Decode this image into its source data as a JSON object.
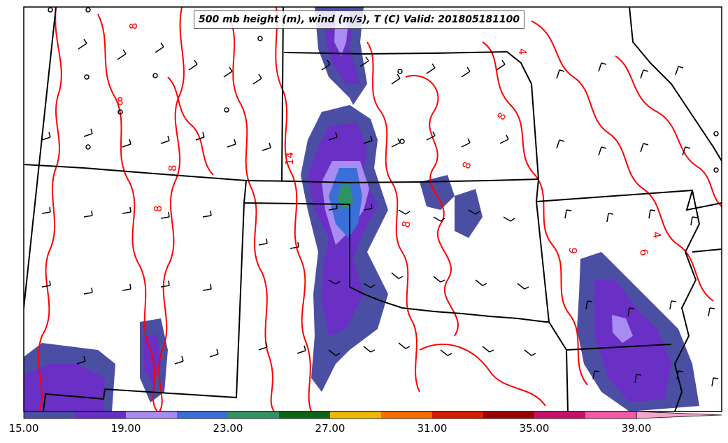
{
  "title": "500 mb height (m), wind (m/s), T (C) Valid: 201805181100",
  "colorbar": {
    "tick_labels": [
      "15.00",
      "19.00",
      "23.00",
      "27.00",
      "31.00",
      "35.00",
      "39.00"
    ],
    "colors": [
      "#4b4fa3",
      "#6a2fc4",
      "#a98cf2",
      "#3a6fd8",
      "#2f9461",
      "#0a6614",
      "#f2b705",
      "#fa6b00",
      "#d71c00",
      "#9c0000",
      "#c8106a",
      "#f25aa8",
      "#f7a3cc"
    ]
  },
  "contour_labels": [
    "8",
    "8",
    "8",
    "8",
    "8",
    "8",
    "8",
    "14",
    "4",
    "4",
    "6",
    "6"
  ],
  "colors": {
    "temperature_contour": "#ff0000",
    "state_borders": "#000000",
    "wind_barbs": "#000000"
  }
}
